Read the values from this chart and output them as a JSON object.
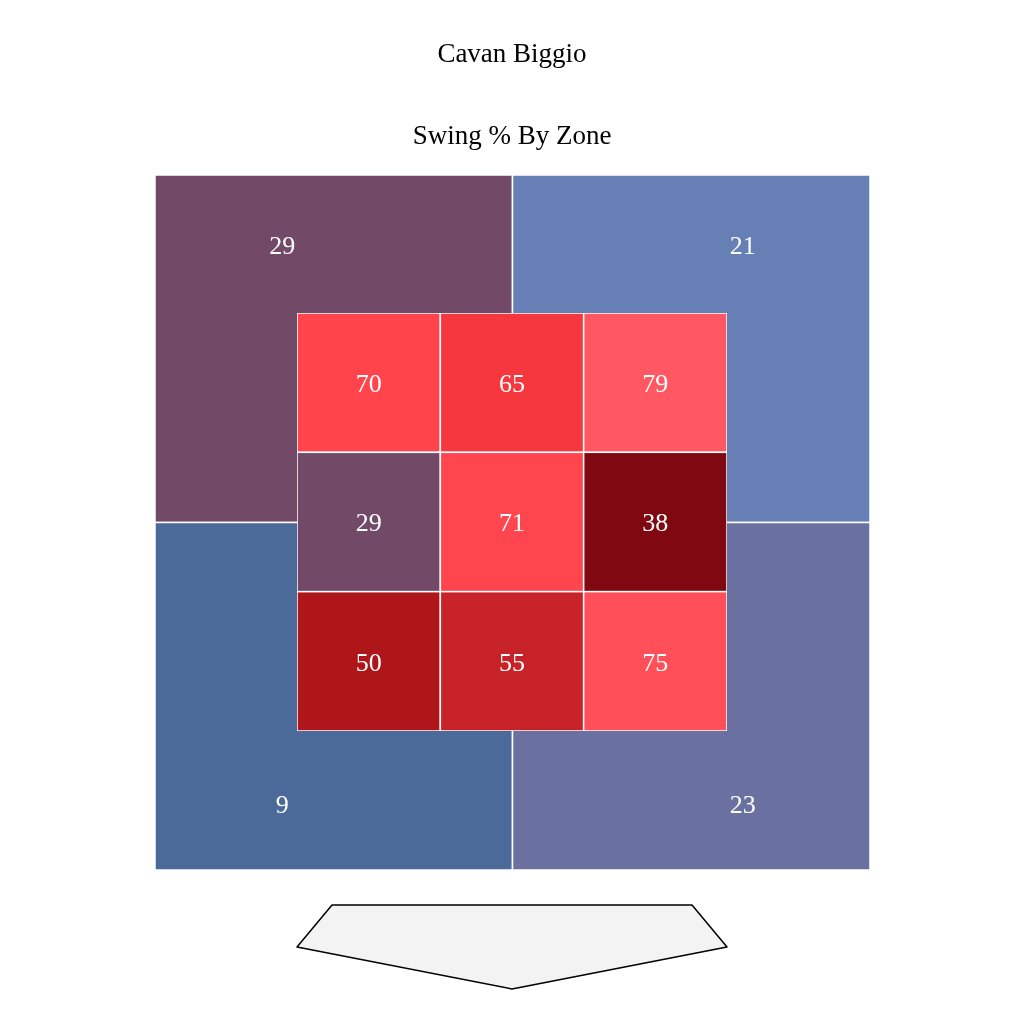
{
  "chart_data": [
    {
      "type": "heatmap",
      "title": "Cavan Biggio",
      "subtitle": "Swing % By Zone",
      "categories": [
        null,
        null
      ],
      "y_categories": [
        null,
        null
      ],
      "cells": [
        [
          29,
          21
        ],
        [
          9,
          23
        ]
      ],
      "colors": [
        "#724a68",
        "#667fb5",
        "#4b6a99",
        "#6a71a1"
      ],
      "data_labels": true
    },
    {
      "type": "heatmap",
      "categories": [
        null,
        null,
        null
      ],
      "y_categories": [
        null,
        null,
        null
      ],
      "cells": [
        [
          70,
          65,
          79
        ],
        [
          29,
          71,
          38
        ],
        [
          50,
          55,
          75
        ]
      ],
      "colors": [
        "#ff444c",
        "#f6373e",
        "#ff5862",
        "#724a68",
        "#ff454e",
        "#800911",
        "#af1619",
        "#c72227",
        "#ff4f58"
      ],
      "data_labels": true
    }
  ]
}
